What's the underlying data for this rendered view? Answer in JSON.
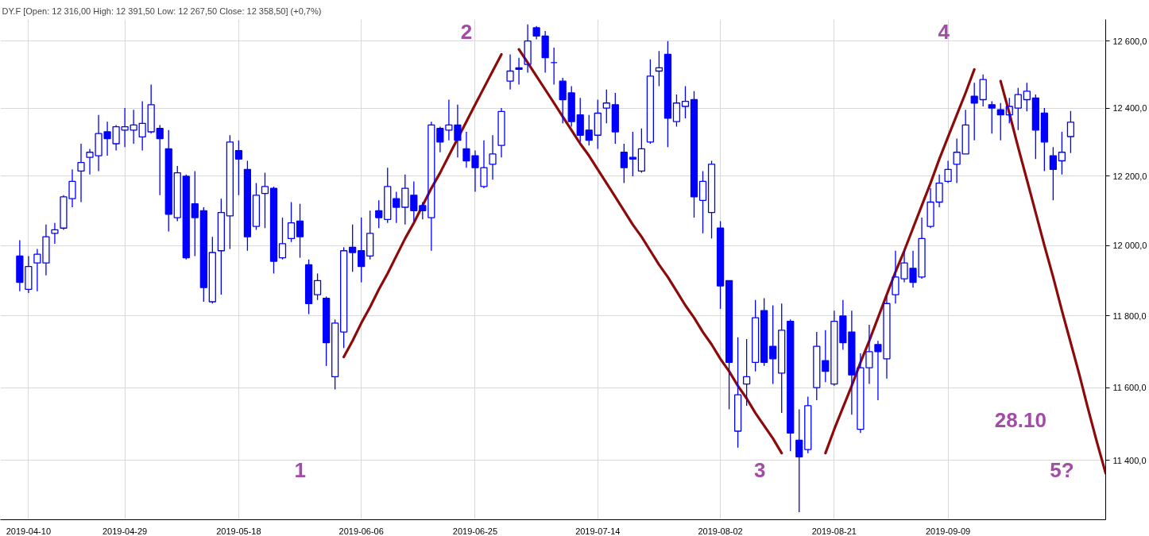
{
  "chart_data": {
    "type": "candlestick",
    "title": "DY.F [Open: 12 316,00  High: 12 391,50  Low: 12 267,50  Close: 12 358,50] (+0,7%)",
    "color": "#0000ff",
    "categories": [
      null,
      "2019-04-10",
      null,
      null,
      null,
      null,
      null,
      null,
      null,
      null,
      null,
      null,
      "2019-04-29",
      null,
      null,
      null,
      null,
      null,
      null,
      null,
      null,
      null,
      null,
      null,
      null,
      "2019-05-18",
      null,
      null,
      null,
      null,
      null,
      null,
      null,
      null,
      null,
      null,
      null,
      null,
      null,
      "2019-06-06",
      null,
      null,
      null,
      null,
      null,
      null,
      null,
      null,
      null,
      null,
      null,
      null,
      "2019-06-25",
      null,
      null,
      null,
      null,
      null,
      null,
      null,
      null,
      null,
      null,
      null,
      null,
      null,
      "2019-07-14",
      null,
      null,
      null,
      null,
      null,
      null,
      null,
      null,
      null,
      null,
      null,
      null,
      null,
      "2019-08-02",
      null,
      null,
      null,
      null,
      null,
      null,
      null,
      null,
      null,
      null,
      null,
      null,
      "2019-08-21",
      null,
      null,
      null,
      null,
      null,
      null,
      null,
      null,
      null,
      null,
      null,
      null,
      "2019-09-09",
      null,
      null,
      null,
      null,
      null,
      null,
      null,
      null,
      null,
      null,
      null,
      null,
      null,
      null,
      null,
      null,
      null,
      null
    ],
    "ohlc": [
      [
        11970,
        12015,
        11870,
        11895
      ],
      [
        11875,
        11970,
        11865,
        11940
      ],
      [
        11950,
        11990,
        11870,
        11975
      ],
      [
        11950,
        12060,
        11915,
        12025
      ],
      [
        12035,
        12065,
        12005,
        12045
      ],
      [
        12050,
        12145,
        12045,
        12140
      ],
      [
        12135,
        12220,
        12110,
        12185
      ],
      [
        12215,
        12295,
        12125,
        12240
      ],
      [
        12255,
        12280,
        12205,
        12270
      ],
      [
        12260,
        12380,
        12215,
        12325
      ],
      [
        12330,
        12360,
        12260,
        12310
      ],
      [
        12295,
        12350,
        12275,
        12345
      ],
      [
        12335,
        12400,
        12285,
        12345
      ],
      [
        12335,
        12395,
        12295,
        12350
      ],
      [
        12315,
        12420,
        12275,
        12355
      ],
      [
        12330,
        12470,
        12325,
        12410
      ],
      [
        12340,
        12350,
        12145,
        12310
      ],
      [
        12280,
        12335,
        12040,
        12090
      ],
      [
        12080,
        12230,
        12070,
        12210
      ],
      [
        12200,
        12205,
        11960,
        11965
      ],
      [
        12120,
        12215,
        11970,
        12080
      ],
      [
        12100,
        12110,
        11840,
        11880
      ],
      [
        11840,
        12025,
        11835,
        11980
      ],
      [
        11985,
        12135,
        11860,
        12095
      ],
      [
        12085,
        12320,
        11990,
        12300
      ],
      [
        12275,
        12305,
        12145,
        12250
      ],
      [
        12220,
        12245,
        11985,
        12025
      ],
      [
        12055,
        12180,
        12045,
        12145
      ],
      [
        12150,
        12210,
        12050,
        12170
      ],
      [
        12165,
        12170,
        11920,
        11955
      ],
      [
        11965,
        12080,
        11960,
        12005
      ],
      [
        12020,
        12125,
        12010,
        12065
      ],
      [
        12070,
        12120,
        11965,
        12025
      ],
      [
        11945,
        11960,
        11805,
        11835
      ],
      [
        11860,
        11920,
        11845,
        11900
      ],
      [
        11850,
        11855,
        11660,
        11725
      ],
      [
        11630,
        11790,
        11595,
        11780
      ],
      [
        11755,
        11995,
        11710,
        11985
      ],
      [
        11995,
        12060,
        11925,
        11980
      ],
      [
        11985,
        12080,
        11895,
        11940
      ],
      [
        11970,
        12100,
        11960,
        12035
      ],
      [
        12100,
        12130,
        12050,
        12080
      ],
      [
        12075,
        12225,
        12065,
        12170
      ],
      [
        12135,
        12155,
        12065,
        12110
      ],
      [
        12110,
        12205,
        12060,
        12165
      ],
      [
        12145,
        12185,
        12070,
        12100
      ],
      [
        12115,
        12125,
        12075,
        12100
      ],
      [
        12080,
        12360,
        11985,
        12350
      ],
      [
        12340,
        12345,
        12270,
        12300
      ],
      [
        12335,
        12425,
        12305,
        12350
      ],
      [
        12350,
        12410,
        12255,
        12305
      ],
      [
        12280,
        12330,
        12225,
        12245
      ],
      [
        12260,
        12275,
        12155,
        12225
      ],
      [
        12170,
        12305,
        12165,
        12225
      ],
      [
        12235,
        12320,
        12190,
        12265
      ],
      [
        12290,
        12400,
        12255,
        12390
      ],
      [
        12480,
        12560,
        12455,
        12510
      ],
      [
        12520,
        12550,
        12470,
        12515
      ],
      [
        12530,
        12650,
        12505,
        12600
      ],
      [
        12640,
        12645,
        12605,
        12615
      ],
      [
        12615,
        12630,
        12505,
        12550
      ],
      [
        12535,
        12580,
        12470,
        12535
      ],
      [
        12480,
        12490,
        12355,
        12425
      ],
      [
        12445,
        12465,
        12345,
        12360
      ],
      [
        12380,
        12430,
        12300,
        12320
      ],
      [
        12335,
        12380,
        12290,
        12305
      ],
      [
        12320,
        12425,
        12280,
        12385
      ],
      [
        12400,
        12455,
        12355,
        12415
      ],
      [
        12410,
        12445,
        12295,
        12330
      ],
      [
        12270,
        12295,
        12180,
        12225
      ],
      [
        12255,
        12330,
        12200,
        12250
      ],
      [
        12215,
        12340,
        12210,
        12280
      ],
      [
        12300,
        12545,
        12295,
        12495
      ],
      [
        12510,
        12570,
        12465,
        12520
      ],
      [
        12560,
        12600,
        12285,
        12370
      ],
      [
        12360,
        12440,
        12345,
        12415
      ],
      [
        12405,
        12465,
        12370,
        12420
      ],
      [
        12425,
        12450,
        12080,
        12140
      ],
      [
        12130,
        12215,
        12035,
        12185
      ],
      [
        12095,
        12245,
        12020,
        12235
      ],
      [
        12050,
        12070,
        11820,
        11885
      ],
      [
        11900,
        11900,
        11540,
        11670
      ],
      [
        11480,
        11740,
        11435,
        11580
      ],
      [
        11610,
        11735,
        11550,
        11630
      ],
      [
        11670,
        11845,
        11645,
        11795
      ],
      [
        11815,
        11850,
        11660,
        11670
      ],
      [
        11715,
        11830,
        11610,
        11680
      ],
      [
        11640,
        11835,
        11530,
        11760
      ],
      [
        11785,
        11790,
        11425,
        11475
      ],
      [
        11455,
        11540,
        11260,
        11410
      ],
      [
        11430,
        11575,
        11420,
        11550
      ],
      [
        11600,
        11755,
        11565,
        11715
      ],
      [
        11675,
        11760,
        11615,
        11645
      ],
      [
        11610,
        11815,
        11605,
        11785
      ],
      [
        11800,
        11845,
        11705,
        11725
      ],
      [
        11755,
        11815,
        11525,
        11635
      ],
      [
        11485,
        11695,
        11475,
        11655
      ],
      [
        11655,
        11775,
        11610,
        11700
      ],
      [
        11720,
        11730,
        11565,
        11700
      ],
      [
        11680,
        11855,
        11625,
        11835
      ],
      [
        11860,
        11985,
        11835,
        11910
      ],
      [
        11905,
        11985,
        11895,
        11950
      ],
      [
        11935,
        11985,
        11880,
        11895
      ],
      [
        11910,
        12080,
        11905,
        12020
      ],
      [
        12055,
        12165,
        12050,
        12125
      ],
      [
        12125,
        12205,
        12110,
        12180
      ],
      [
        12185,
        12245,
        12180,
        12220
      ],
      [
        12235,
        12310,
        12180,
        12270
      ],
      [
        12265,
        12395,
        12265,
        12350
      ],
      [
        12435,
        12475,
        12305,
        12415
      ],
      [
        12425,
        12500,
        12405,
        12485
      ],
      [
        12410,
        12420,
        12325,
        12400
      ],
      [
        12395,
        12415,
        12305,
        12380
      ],
      [
        12380,
        12430,
        12355,
        12405
      ],
      [
        12400,
        12460,
        12335,
        12440
      ],
      [
        12425,
        12475,
        12390,
        12450
      ],
      [
        12430,
        12440,
        12250,
        12335
      ],
      [
        12385,
        12400,
        12215,
        12300
      ],
      [
        12260,
        12285,
        12130,
        12220
      ],
      [
        12245,
        12330,
        12205,
        12270
      ],
      [
        12316,
        12391.5,
        12267.5,
        12358.5
      ],
      null,
      null,
      null,
      null
    ],
    "series": [
      {
        "type": "line",
        "color": "#8c0a0a",
        "values": [
          null,
          null,
          null,
          null,
          null,
          null,
          null,
          null,
          null,
          null,
          null,
          null,
          null,
          null,
          null,
          null,
          null,
          null,
          null,
          null,
          null,
          null,
          null,
          null,
          null,
          null,
          null,
          null,
          null,
          null,
          null,
          null,
          null,
          null,
          null,
          null,
          null,
          11685,
          11730,
          11780,
          11825,
          11875,
          11920,
          11970,
          12020,
          12065,
          12115,
          12165,
          12210,
          12260,
          12310,
          12360,
          12410,
          12460,
          12510,
          12560,
          null,
          null,
          null,
          null,
          null,
          null,
          null,
          null,
          null,
          null,
          null,
          null,
          null,
          null,
          null,
          null,
          null,
          null,
          null,
          null,
          null,
          null,
          null,
          null,
          null,
          null,
          null,
          null,
          null,
          null,
          null,
          null,
          null,
          null,
          null,
          null,
          null,
          null,
          null,
          null,
          null,
          null,
          null,
          null,
          null,
          null,
          null,
          null,
          null,
          null,
          null,
          null,
          null,
          null,
          null,
          null,
          null,
          null,
          null,
          null,
          null,
          null,
          null,
          null,
          null,
          null,
          null,
          null,
          null
        ]
      },
      {
        "type": "line",
        "color": "#8c0a0a",
        "values": [
          null,
          null,
          null,
          null,
          null,
          null,
          null,
          null,
          null,
          null,
          null,
          null,
          null,
          null,
          null,
          null,
          null,
          null,
          null,
          null,
          null,
          null,
          null,
          null,
          null,
          null,
          null,
          null,
          null,
          null,
          null,
          null,
          null,
          null,
          null,
          null,
          null,
          null,
          null,
          null,
          null,
          null,
          null,
          null,
          null,
          null,
          null,
          null,
          null,
          null,
          null,
          null,
          null,
          null,
          null,
          null,
          null,
          12575,
          12535,
          12495,
          12455,
          12415,
          12375,
          12335,
          12295,
          12260,
          12220,
          12180,
          12140,
          12100,
          12060,
          12025,
          11985,
          11945,
          11910,
          11870,
          11830,
          11795,
          11755,
          11720,
          11680,
          11645,
          11605,
          11570,
          11530,
          11495,
          11460,
          11420,
          null,
          null,
          null,
          null,
          null,
          null,
          null,
          null,
          null,
          null,
          null,
          null,
          null,
          null,
          null,
          null,
          null,
          null,
          null,
          null,
          null,
          null,
          null,
          null,
          null,
          null,
          null,
          null,
          null,
          null,
          null,
          null,
          null,
          null,
          null,
          null,
          null
        ]
      },
      {
        "type": "line",
        "color": "#8c0a0a",
        "values": [
          null,
          null,
          null,
          null,
          null,
          null,
          null,
          null,
          null,
          null,
          null,
          null,
          null,
          null,
          null,
          null,
          null,
          null,
          null,
          null,
          null,
          null,
          null,
          null,
          null,
          null,
          null,
          null,
          null,
          null,
          null,
          null,
          null,
          null,
          null,
          null,
          null,
          null,
          null,
          null,
          null,
          null,
          null,
          null,
          null,
          null,
          null,
          null,
          null,
          null,
          null,
          null,
          null,
          null,
          null,
          null,
          null,
          null,
          null,
          null,
          null,
          null,
          null,
          null,
          null,
          null,
          null,
          null,
          null,
          null,
          null,
          null,
          null,
          null,
          null,
          null,
          null,
          null,
          null,
          null,
          null,
          null,
          null,
          null,
          null,
          null,
          null,
          null,
          null,
          null,
          null,
          null,
          11420,
          11485,
          11545,
          11605,
          11670,
          11730,
          11795,
          11860,
          11925,
          11985,
          12050,
          12115,
          12180,
          12250,
          12315,
          12380,
          12445,
          12515,
          null,
          null,
          null,
          null,
          null,
          null,
          null,
          null,
          null,
          null,
          null,
          null,
          null,
          null,
          null
        ]
      },
      {
        "type": "line",
        "color": "#8c0a0a",
        "values": [
          null,
          null,
          null,
          null,
          null,
          null,
          null,
          null,
          null,
          null,
          null,
          null,
          null,
          null,
          null,
          null,
          null,
          null,
          null,
          null,
          null,
          null,
          null,
          null,
          null,
          null,
          null,
          null,
          null,
          null,
          null,
          null,
          null,
          null,
          null,
          null,
          null,
          null,
          null,
          null,
          null,
          null,
          null,
          null,
          null,
          null,
          null,
          null,
          null,
          null,
          null,
          null,
          null,
          null,
          null,
          null,
          null,
          null,
          null,
          null,
          null,
          null,
          null,
          null,
          null,
          null,
          null,
          null,
          null,
          null,
          null,
          null,
          null,
          null,
          null,
          null,
          null,
          null,
          null,
          null,
          null,
          null,
          null,
          null,
          null,
          null,
          null,
          null,
          null,
          null,
          null,
          null,
          null,
          null,
          null,
          null,
          null,
          null,
          null,
          null,
          null,
          null,
          null,
          null,
          null,
          null,
          null,
          null,
          null,
          null,
          null,
          null,
          12480,
          12385,
          12285,
          12190,
          12095,
          12000,
          11910,
          11815,
          11725,
          11635,
          11540,
          11450,
          11365
        ]
      }
    ],
    "annotations": [
      "1",
      "2",
      "3",
      "4",
      "5?",
      "28.10"
    ],
    "log": true,
    "ylim": [
      11240,
      12665
    ],
    "yticks": [
      {
        "value": 11400,
        "label": "11 400,0"
      },
      {
        "value": 11600,
        "label": "11 600,0"
      },
      {
        "value": 11800,
        "label": "11 800,0"
      },
      {
        "value": 12000,
        "label": "12 000,0"
      },
      {
        "value": 12200,
        "label": "12 200,0"
      },
      {
        "value": 12400,
        "label": "12 400,0"
      },
      {
        "value": 12600,
        "label": "12 600,0"
      }
    ],
    "grid": true
  }
}
